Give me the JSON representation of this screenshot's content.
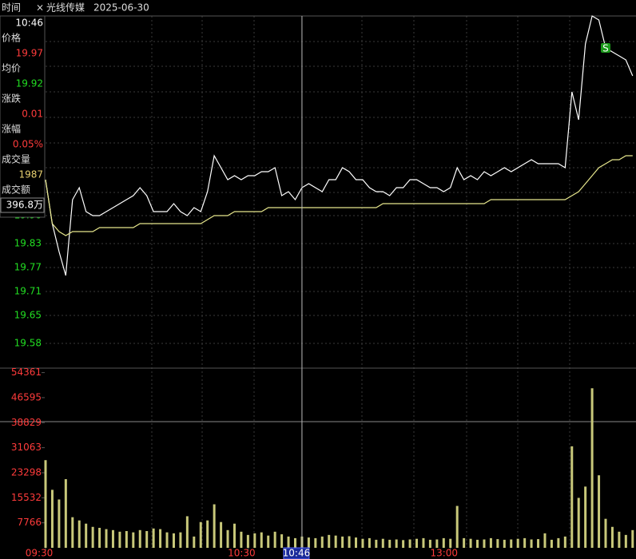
{
  "header": {
    "close": "×",
    "stock": "光线传媒",
    "date": "2025-06-30"
  },
  "info": [
    {
      "label": "时间",
      "value": "10:46",
      "color": "#ffffff"
    },
    {
      "label": "价格",
      "value": "19.97",
      "color": "#ff3b3b"
    },
    {
      "label": "均价",
      "value": "19.92",
      "color": "#22dd22"
    },
    {
      "label": "涨跌",
      "value": "0.01",
      "color": "#ff3b3b"
    },
    {
      "label": "涨幅",
      "value": "0.05%",
      "color": "#ff3b3b"
    },
    {
      "label": "成交量",
      "value": "1987",
      "color": "#e8d070"
    },
    {
      "label": "成交额",
      "value": "396.8万",
      "color": "#ffffff"
    }
  ],
  "chart_data": {
    "type": "intraday",
    "x": [
      0,
      2,
      4,
      6,
      8,
      10,
      12,
      14,
      16,
      18,
      20,
      22,
      24,
      26,
      28,
      30,
      32,
      34,
      36,
      38,
      40,
      42,
      44,
      46,
      48,
      50,
      52,
      54,
      56,
      58,
      60,
      62,
      64,
      66,
      68,
      70,
      72,
      74,
      76,
      78,
      80,
      82,
      84,
      86,
      88,
      90,
      92,
      94,
      96,
      98,
      100,
      102,
      104,
      106,
      108,
      110,
      112,
      114,
      116,
      118,
      120,
      122,
      124,
      126,
      128,
      130,
      132,
      134,
      136,
      138,
      140,
      142,
      144,
      146,
      148,
      150,
      152,
      154,
      156,
      158,
      160,
      162,
      164,
      166,
      168,
      170,
      172,
      174
    ],
    "xlim": [
      0,
      175
    ],
    "xticks": [
      {
        "value": 0,
        "label": "09:30"
      },
      {
        "value": 60,
        "label": "10:30"
      },
      {
        "value": 120,
        "label": "13:00"
      }
    ],
    "ylim": [
      19.52,
      20.4
    ],
    "yticks": [
      {
        "value": 19.9,
        "label": "19.90"
      },
      19.83,
      19.77,
      19.71,
      19.65,
      19.58
    ],
    "series": [
      {
        "color": "#ffffff",
        "values": [
          19.99,
          19.88,
          19.81,
          19.75,
          19.94,
          19.97,
          19.91,
          19.9,
          19.9,
          19.91,
          19.92,
          19.93,
          19.94,
          19.95,
          19.97,
          19.95,
          19.91,
          19.91,
          19.91,
          19.93,
          19.91,
          19.9,
          19.92,
          19.91,
          19.96,
          20.05,
          20.02,
          19.99,
          20.0,
          19.99,
          20.0,
          20.0,
          20.01,
          20.01,
          20.02,
          19.95,
          19.96,
          19.94,
          19.97,
          19.98,
          19.97,
          19.96,
          19.99,
          19.99,
          20.02,
          20.01,
          19.99,
          19.99,
          19.97,
          19.96,
          19.96,
          19.95,
          19.97,
          19.97,
          19.99,
          19.99,
          19.98,
          19.97,
          19.97,
          19.96,
          19.97,
          20.02,
          19.99,
          20.0,
          19.99,
          20.01,
          20.0,
          20.01,
          20.02,
          20.01,
          20.02,
          20.03,
          20.04,
          20.03,
          20.03,
          20.03,
          20.03,
          20.02,
          20.21,
          20.14,
          20.33,
          20.4,
          20.39,
          20.32,
          20.31,
          20.3,
          20.29,
          20.25
        ]
      },
      {
        "color": "#e6e68c",
        "values": [
          19.99,
          19.88,
          19.86,
          19.85,
          19.86,
          19.86,
          19.86,
          19.86,
          19.87,
          19.87,
          19.87,
          19.87,
          19.87,
          19.87,
          19.88,
          19.88,
          19.88,
          19.88,
          19.88,
          19.88,
          19.88,
          19.88,
          19.88,
          19.88,
          19.89,
          19.9,
          19.9,
          19.9,
          19.91,
          19.91,
          19.91,
          19.91,
          19.91,
          19.92,
          19.92,
          19.92,
          19.92,
          19.92,
          19.92,
          19.92,
          19.92,
          19.92,
          19.92,
          19.92,
          19.92,
          19.92,
          19.92,
          19.92,
          19.92,
          19.92,
          19.93,
          19.93,
          19.93,
          19.93,
          19.93,
          19.93,
          19.93,
          19.93,
          19.93,
          19.93,
          19.93,
          19.93,
          19.93,
          19.93,
          19.93,
          19.93,
          19.94,
          19.94,
          19.94,
          19.94,
          19.94,
          19.94,
          19.94,
          19.94,
          19.94,
          19.94,
          19.94,
          19.94,
          19.95,
          19.96,
          19.98,
          20.0,
          20.02,
          20.03,
          20.04,
          20.04,
          20.05,
          20.05
        ]
      }
    ],
    "volume": {
      "color": "#c8c87a",
      "ylim": [
        0,
        55500
      ],
      "yticks": [
        7766,
        15532,
        23298,
        31063,
        38829,
        46595,
        54361
      ],
      "values": [
        27200,
        18000,
        15000,
        21300,
        9500,
        8500,
        7500,
        6500,
        6200,
        5800,
        5500,
        5000,
        5200,
        4800,
        5500,
        5200,
        6000,
        5800,
        4800,
        4500,
        4800,
        9800,
        3500,
        8000,
        8500,
        13500,
        8000,
        5500,
        7500,
        5000,
        4000,
        4500,
        4800,
        3800,
        5000,
        4200,
        3500,
        3000,
        3500,
        3200,
        3000,
        3500,
        4000,
        3800,
        3500,
        3600,
        3200,
        2800,
        3000,
        2500,
        2800,
        2500,
        2600,
        2400,
        2600,
        2800,
        3000,
        2500,
        2600,
        3000,
        2800,
        13000,
        3000,
        2800,
        2500,
        2600,
        3000,
        2700,
        2500,
        2600,
        2800,
        3000,
        2600,
        2700,
        4500,
        2500,
        3000,
        3500,
        31500,
        15500,
        19000,
        49500,
        22500,
        9000,
        6500,
        5000,
        4000,
        5500
      ]
    },
    "crosshair": {
      "x": 76,
      "label": "10:46"
    },
    "annotations": [
      {
        "x": 166,
        "y": 20.32,
        "label": "S"
      }
    ]
  }
}
